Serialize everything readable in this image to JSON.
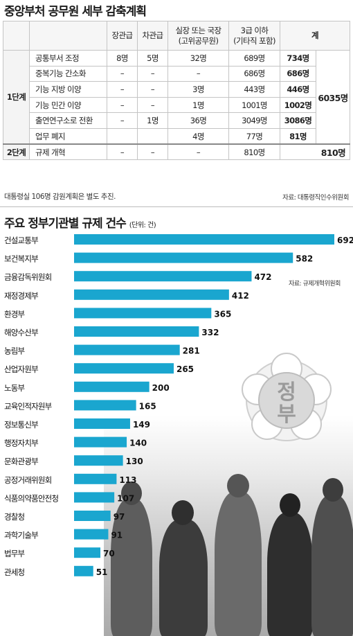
{
  "table": {
    "title": "중앙부처 공무원 세부 감축계획",
    "headers": {
      "minister": "장관급",
      "vice": "차관급",
      "director_line1": "실장 또는 국장",
      "director_line2": "(고위공무원)",
      "grade3_line1": "3급 이하",
      "grade3_line2": "(기타직 포함)",
      "total": "계"
    },
    "step1_label": "1단계",
    "step1_total": "6035명",
    "step2_label": "2단계",
    "rows": [
      {
        "item": "공통부서 조정",
        "minister": "8명",
        "vice": "5명",
        "director": "32명",
        "grade3": "689명",
        "subtotal": "734명"
      },
      {
        "item": "중복기능 간소화",
        "minister": "–",
        "vice": "–",
        "director": "–",
        "grade3": "686명",
        "subtotal": "686명"
      },
      {
        "item": "기능 지방 이양",
        "minister": "–",
        "vice": "–",
        "director": "3명",
        "grade3": "443명",
        "subtotal": "446명"
      },
      {
        "item": "기능 민간 이양",
        "minister": "–",
        "vice": "–",
        "director": "1명",
        "grade3": "1001명",
        "subtotal": "1002명"
      },
      {
        "item": "출연연구소로 전환",
        "minister": "–",
        "vice": "1명",
        "director": "36명",
        "grade3": "3049명",
        "subtotal": "3086명"
      },
      {
        "item": "업무 폐지",
        "minister": "",
        "vice": "",
        "director": "4명",
        "grade3": "77명",
        "subtotal": "81명"
      }
    ],
    "step2_row": {
      "item": "규제 개혁",
      "minister": "–",
      "vice": "–",
      "director": "–",
      "grade3": "810명",
      "total": "810명"
    },
    "note": "대통령실 106명 감원계획은 별도 추진.",
    "source": "자료: 대통령직인수위원회"
  },
  "chart_data": {
    "type": "bar",
    "orientation": "horizontal",
    "title": "주요 정부기관별 규제 건수",
    "unit_note": "(단위: 건)",
    "source": "자료: 규제개혁위원회",
    "categories": [
      "건설교통부",
      "보건복지부",
      "금융감독위원회",
      "재정경제부",
      "환경부",
      "해양수산부",
      "농림부",
      "산업자원부",
      "노동부",
      "교육인적자원부",
      "정보통신부",
      "행정자치부",
      "문화관광부",
      "공정거래위원회",
      "식품의약품안전청",
      "경찰청",
      "과학기술부",
      "법무부",
      "관세청"
    ],
    "values": [
      692,
      582,
      472,
      412,
      365,
      332,
      281,
      265,
      200,
      165,
      149,
      140,
      130,
      113,
      107,
      97,
      91,
      70,
      51
    ],
    "bar_color": "#1aa6cf",
    "grid": false,
    "legend": "none"
  },
  "emblem": {
    "text_top": "정",
    "text_bottom": "부"
  }
}
